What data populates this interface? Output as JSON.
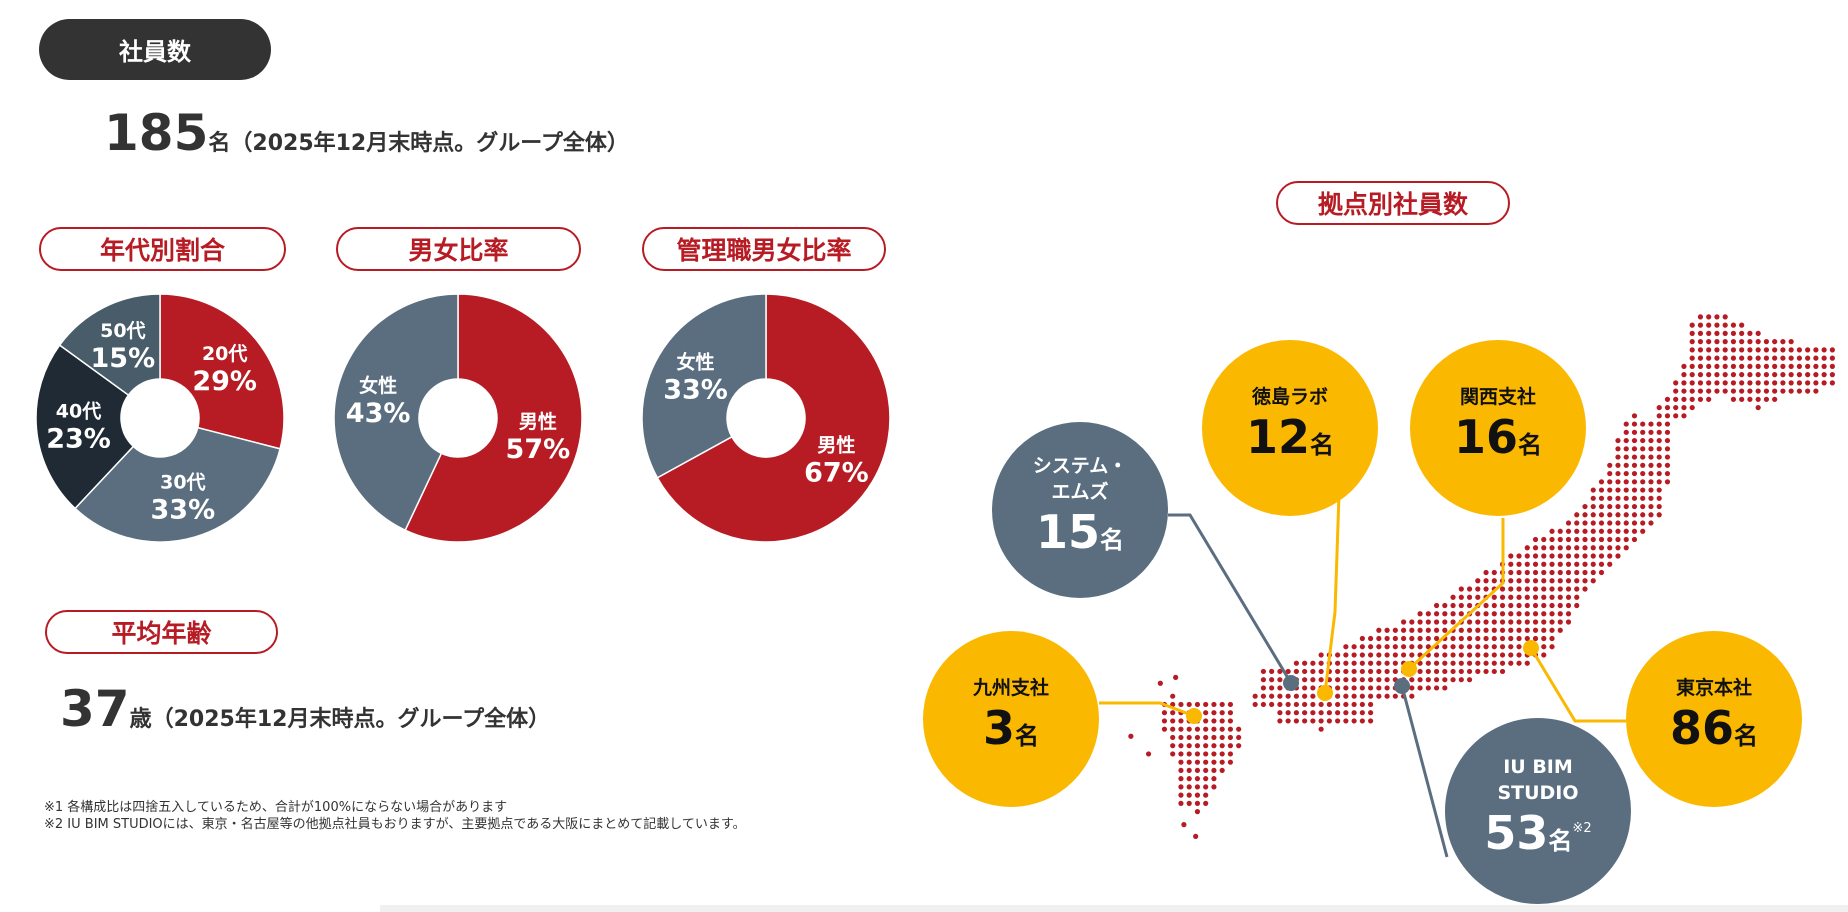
{
  "header": {
    "title": "社員数"
  },
  "total": {
    "number": "185",
    "unit": "名",
    "note": "（2025年12月末時点。グループ全体）"
  },
  "age_chart": {
    "title": "年代別割合",
    "segments": [
      {
        "label": "20代",
        "pct": "29%",
        "value": 29,
        "color": "#b71c24"
      },
      {
        "label": "30代",
        "pct": "33%",
        "value": 33,
        "color": "#5a6e80"
      },
      {
        "label": "40代",
        "pct": "23%",
        "value": 23,
        "color": "#1f2a35"
      },
      {
        "label": "50代",
        "pct": "15%",
        "value": 15,
        "color": "#485c69"
      }
    ]
  },
  "gender_chart": {
    "title": "男女比率",
    "segments": [
      {
        "label": "男性",
        "pct": "57%",
        "value": 57,
        "color": "#b71c24"
      },
      {
        "label": "女性",
        "pct": "43%",
        "value": 43,
        "color": "#5a6e80"
      }
    ]
  },
  "manager_chart": {
    "title": "管理職男女比率",
    "segments": [
      {
        "label": "男性",
        "pct": "67%",
        "value": 67,
        "color": "#b71c24"
      },
      {
        "label": "女性",
        "pct": "33%",
        "value": 33,
        "color": "#5a6e80"
      }
    ]
  },
  "avg_age": {
    "title": "平均年齢",
    "number": "37",
    "unit": "歳",
    "note": "（2025年12月末時点。グループ全体）"
  },
  "notes": [
    "※1 各構成比は四捨五入しているため、合計が100%にならない場合があります",
    "※2  IU BIM STUDIOには、東京・名古屋等の他拠点社員もおりますが、主要拠点である大阪にまとめて記載しています。"
  ],
  "locations": {
    "title": "拠点別社員数",
    "items": [
      {
        "name": "システム・エムズ",
        "count": "15",
        "unit": "名",
        "color": "#5a6e80"
      },
      {
        "name": "徳島ラボ",
        "count": "12",
        "unit": "名",
        "color": "#fbb800"
      },
      {
        "name": "関西支社",
        "count": "16",
        "unit": "名",
        "color": "#fbb800"
      },
      {
        "name": "九州支社",
        "count": "3",
        "unit": "名",
        "color": "#fbb800"
      },
      {
        "name": "東京本社",
        "count": "86",
        "unit": "名",
        "color": "#fbb800"
      },
      {
        "name": "IU BIM STUDIO",
        "count": "53",
        "unit": "名",
        "mark": "※2",
        "color": "#5a6e80"
      }
    ]
  },
  "map_color": "#b71c24"
}
